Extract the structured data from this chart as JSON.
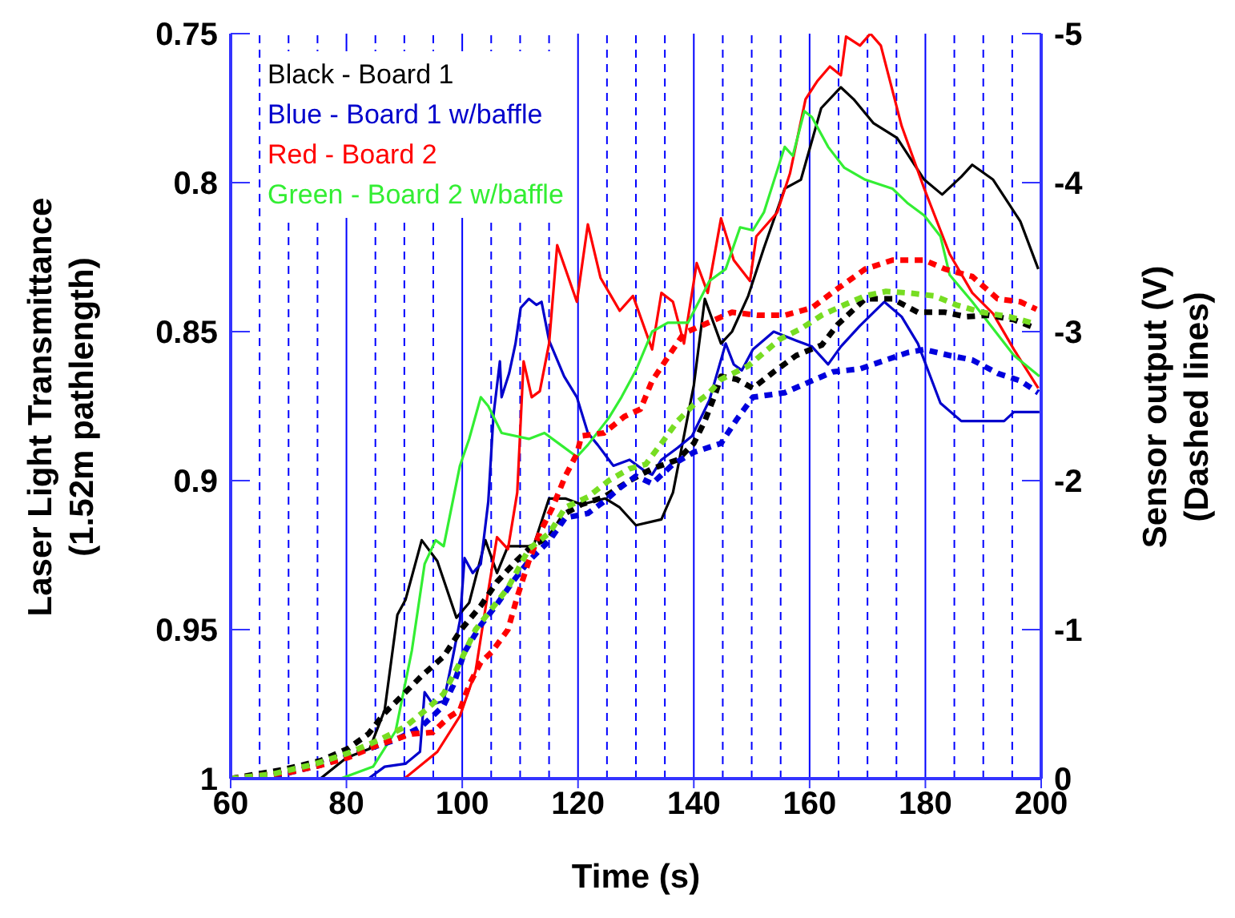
{
  "chart_data": {
    "type": "line",
    "xlabel": "Time (s)",
    "ylabel": "Laser Light Transmittance\n(1.52m pathlength)",
    "y2label": "Sensor output (V)\n(Dashed lines)",
    "xlim": [
      60,
      200
    ],
    "xticks": [
      60,
      80,
      100,
      120,
      140,
      160,
      180,
      200
    ],
    "ylim": [
      1,
      0.75
    ],
    "yticks": [
      0.75,
      0.8,
      0.85,
      0.9,
      0.95,
      1
    ],
    "y2lim": [
      0,
      -5
    ],
    "y2ticks": [
      -5,
      -4,
      -3,
      -2,
      -1,
      0
    ],
    "legend": "top left",
    "series": [
      {
        "name": "Black - Board 1",
        "color": "#000000",
        "line_style": "solid",
        "x": [
          60,
          75.5,
          80,
          84,
          86.6,
          88.8,
          90.2,
          93,
          95.7,
          99,
          101.2,
          104,
          106,
          107.9,
          112.3,
          115,
          117.8,
          120.6,
          124.7,
          127.2,
          130,
          134.4,
          136.4,
          139,
          140,
          141.9,
          144.7,
          146.6,
          149.4,
          152.1,
          155.7,
          158.5,
          162,
          165.4,
          167.6,
          171,
          175.1,
          179.8,
          182.9,
          186.2,
          188.1,
          191.7,
          196.4,
          199.5
        ],
        "values": [
          1,
          1,
          0.993,
          0.99,
          0.977,
          0.945,
          0.94,
          0.92,
          0.927,
          0.946,
          0.941,
          0.92,
          0.931,
          0.922,
          0.922,
          0.906,
          0.906,
          0.908,
          0.906,
          0.909,
          0.915,
          0.913,
          0.904,
          0.878,
          0.868,
          0.839,
          0.854,
          0.85,
          0.838,
          0.822,
          0.802,
          0.799,
          0.775,
          0.768,
          0.772,
          0.78,
          0.785,
          0.799,
          0.804,
          0.798,
          0.794,
          0.799,
          0.813,
          0.829
        ]
      },
      {
        "name": "Blue - Board 1 w/baffle",
        "color": "#0000cc",
        "line_style": "solid",
        "x": [
          60,
          83.8,
          86.6,
          90.2,
          92.7,
          93.5,
          94.9,
          96.8,
          98.2,
          99.6,
          100.4,
          101.8,
          103.2,
          104.5,
          105.4,
          106.5,
          106.8,
          108.1,
          109.2,
          110.1,
          111.5,
          112.8,
          113.7,
          115,
          117.6,
          119.8,
          121.7,
          123.4,
          126.1,
          128.9,
          131.7,
          132.8,
          134.4,
          137.2,
          139.7,
          142.7,
          145.5,
          146.9,
          148.3,
          150.2,
          153.8,
          157.7,
          160.4,
          163.2,
          165.4,
          168.7,
          172.9,
          175.9,
          178.7,
          182.6,
          186.2,
          189.8,
          193.6,
          195.3,
          199.7
        ],
        "values": [
          1,
          1,
          0.996,
          0.995,
          0.991,
          0.971,
          0.975,
          0.974,
          0.961,
          0.947,
          0.926,
          0.931,
          0.928,
          0.907,
          0.878,
          0.86,
          0.872,
          0.864,
          0.854,
          0.842,
          0.839,
          0.841,
          0.84,
          0.853,
          0.865,
          0.872,
          0.884,
          0.888,
          0.895,
          0.893,
          0.897,
          0.898,
          0.893,
          0.889,
          0.885,
          0.873,
          0.854,
          0.861,
          0.863,
          0.856,
          0.85,
          0.853,
          0.855,
          0.861,
          0.855,
          0.848,
          0.84,
          0.845,
          0.854,
          0.874,
          0.88,
          0.88,
          0.88,
          0.877,
          0.877
        ]
      },
      {
        "name": "Red - Board 2",
        "color": "#ff0000",
        "line_style": "solid",
        "x": [
          60,
          90,
          95.7,
          99.6,
          102.3,
          104,
          106,
          107.9,
          109.5,
          110.6,
          112,
          113.4,
          115,
          116.4,
          119.8,
          121.7,
          123.9,
          127.2,
          129.5,
          132.8,
          134.4,
          136.4,
          138.3,
          140.5,
          142.4,
          144.7,
          146.9,
          149.7,
          150.8,
          154.4,
          156.6,
          159.3,
          161.3,
          163.5,
          165.4,
          166.3,
          168.7,
          170.5,
          172.3,
          175.9,
          179.8,
          184.2,
          188.1,
          191.7,
          195.3,
          199.5
        ],
        "values": [
          1,
          1,
          0.991,
          0.979,
          0.964,
          0.943,
          0.919,
          0.923,
          0.904,
          0.86,
          0.872,
          0.87,
          0.854,
          0.821,
          0.84,
          0.814,
          0.832,
          0.843,
          0.838,
          0.856,
          0.837,
          0.84,
          0.854,
          0.827,
          0.837,
          0.812,
          0.826,
          0.833,
          0.818,
          0.81,
          0.797,
          0.772,
          0.766,
          0.761,
          0.764,
          0.751,
          0.754,
          0.75,
          0.754,
          0.781,
          0.802,
          0.824,
          0.837,
          0.844,
          0.856,
          0.869
        ]
      },
      {
        "name": "Green - Board 2 w/baffle",
        "color": "#33ee33",
        "line_style": "solid",
        "x": [
          60,
          79,
          84.6,
          88.5,
          91.3,
          93.5,
          95.4,
          96.8,
          99.6,
          101.2,
          103.2,
          104.5,
          106.8,
          111.5,
          114.2,
          117,
          119.8,
          121.7,
          125.3,
          127.5,
          130,
          132.8,
          135.5,
          139,
          142.7,
          145.5,
          148,
          150.2,
          152.1,
          155.7,
          157.1,
          159.1,
          160.4,
          163.2,
          166,
          169.6,
          174.3,
          177,
          179.8,
          182.6,
          184.2,
          188.1,
          191.7,
          195.3,
          199.7
        ],
        "values": [
          1,
          1,
          0.996,
          0.984,
          0.957,
          0.928,
          0.92,
          0.922,
          0.895,
          0.886,
          0.872,
          0.875,
          0.884,
          0.886,
          0.884,
          0.888,
          0.892,
          0.888,
          0.879,
          0.872,
          0.863,
          0.85,
          0.847,
          0.847,
          0.833,
          0.829,
          0.815,
          0.816,
          0.81,
          0.788,
          0.791,
          0.776,
          0.778,
          0.788,
          0.795,
          0.799,
          0.802,
          0.807,
          0.811,
          0.818,
          0.831,
          0.84,
          0.849,
          0.858,
          0.865
        ]
      },
      {
        "color": "#000000",
        "line_style": "dashed",
        "axis": "y2",
        "x": [
          60,
          69,
          75.5,
          80.2,
          83.8,
          86.6,
          90.2,
          93,
          96.8,
          99.8,
          103.2,
          106,
          109.3,
          112.3,
          115.1,
          117.8,
          120.6,
          124.5,
          128.9,
          132.8,
          137.2,
          140,
          141.9,
          143.8,
          144.7,
          147.4,
          150.2,
          153.8,
          157.7,
          162.1,
          164.9,
          169.6,
          174.3,
          178.7,
          183.4,
          187,
          190.9,
          195.3,
          199.2
        ],
        "values": [
          0,
          -0.06,
          -0.12,
          -0.2,
          -0.3,
          -0.44,
          -0.58,
          -0.69,
          -0.82,
          -1,
          -1.16,
          -1.32,
          -1.46,
          -1.57,
          -1.62,
          -1.78,
          -1.84,
          -1.89,
          -2,
          -2.08,
          -2.14,
          -2.25,
          -2.4,
          -2.59,
          -2.7,
          -2.68,
          -2.62,
          -2.73,
          -2.84,
          -2.91,
          -3.05,
          -3.22,
          -3.22,
          -3.13,
          -3.13,
          -3.1,
          -3.11,
          -3.08,
          -3.02
        ]
      },
      {
        "color": "#0000dd",
        "line_style": "dashed",
        "axis": "y2",
        "x": [
          60,
          69,
          75.5,
          80.2,
          83.8,
          88.5,
          93,
          96.8,
          98.5,
          100.4,
          103.2,
          106,
          108.7,
          111.5,
          115.1,
          117.8,
          121.7,
          124.5,
          127.2,
          130,
          132.8,
          136.4,
          140,
          144.7,
          147.4,
          150.2,
          155.7,
          160.4,
          164,
          168.7,
          173.2,
          177,
          179.8,
          184.2,
          188.1,
          192.5,
          196.4,
          199.5
        ],
        "values": [
          0,
          -0.03,
          -0.09,
          -0.15,
          -0.2,
          -0.26,
          -0.35,
          -0.49,
          -0.63,
          -0.85,
          -1.03,
          -1.17,
          -1.32,
          -1.46,
          -1.6,
          -1.75,
          -1.78,
          -1.86,
          -1.95,
          -2.03,
          -1.98,
          -2.11,
          -2.19,
          -2.25,
          -2.41,
          -2.56,
          -2.59,
          -2.67,
          -2.73,
          -2.75,
          -2.81,
          -2.86,
          -2.88,
          -2.84,
          -2.81,
          -2.72,
          -2.67,
          -2.59
        ]
      },
      {
        "color": "#ff0000",
        "line_style": "dashed",
        "axis": "y2",
        "x": [
          60,
          70,
          75.5,
          80.2,
          85.7,
          91.3,
          94.9,
          97.6,
          99.6,
          101.2,
          103.2,
          105.1,
          107.9,
          109.5,
          111.5,
          113.4,
          115.6,
          117.8,
          119.8,
          120.6,
          124.5,
          128,
          130.8,
          132.8,
          138.3,
          141.9,
          146.6,
          151,
          155.7,
          160.4,
          164.9,
          169.6,
          174.3,
          179.8,
          183.4,
          188.1,
          192.5,
          196.4,
          199.2
        ],
        "values": [
          0,
          -0.04,
          -0.09,
          -0.14,
          -0.23,
          -0.3,
          -0.31,
          -0.41,
          -0.46,
          -0.63,
          -0.78,
          -0.85,
          -1,
          -1.22,
          -1.46,
          -1.65,
          -1.82,
          -2.03,
          -2.18,
          -2.3,
          -2.32,
          -2.43,
          -2.48,
          -2.67,
          -2.99,
          -3.05,
          -3.13,
          -3.11,
          -3.11,
          -3.16,
          -3.29,
          -3.42,
          -3.48,
          -3.48,
          -3.42,
          -3.37,
          -3.22,
          -3.2,
          -3.15
        ]
      },
      {
        "color": "#77dd22",
        "line_style": "dashed",
        "axis": "y2",
        "x": [
          60,
          67.2,
          74.7,
          80.2,
          85.7,
          90.2,
          94,
          96.8,
          99.6,
          102.3,
          105.1,
          107.9,
          111.5,
          115.1,
          117.8,
          121.7,
          125.3,
          128.9,
          131.7,
          134.4,
          137.2,
          140,
          142.7,
          144.7,
          149.4,
          154.9,
          158.5,
          162.1,
          166,
          169.6,
          173.2,
          177,
          181.5,
          185.3,
          189.8,
          194.5,
          199.2
        ],
        "values": [
          0,
          -0.03,
          -0.1,
          -0.17,
          -0.26,
          -0.35,
          -0.47,
          -0.57,
          -0.78,
          -1,
          -1.14,
          -1.28,
          -1.54,
          -1.65,
          -1.82,
          -1.89,
          -2,
          -2.08,
          -2.11,
          -2.25,
          -2.4,
          -2.51,
          -2.59,
          -2.68,
          -2.77,
          -2.95,
          -3.02,
          -3.11,
          -3.18,
          -3.24,
          -3.27,
          -3.26,
          -3.24,
          -3.18,
          -3.13,
          -3.1,
          -3.05
        ]
      }
    ],
    "ref_lines": [
      {
        "axis": "x",
        "value": 65,
        "line_style": "dashed",
        "color": "#0000ff"
      },
      {
        "axis": "x",
        "value": 70,
        "line_style": "dashed",
        "color": "#0000ff"
      },
      {
        "axis": "x",
        "value": 75,
        "line_style": "dashed",
        "color": "#0000ff"
      },
      {
        "axis": "x",
        "value": 80,
        "line_style": "solid",
        "color": "#0000ff"
      },
      {
        "axis": "x",
        "value": 85,
        "line_style": "dashed",
        "color": "#0000ff"
      },
      {
        "axis": "x",
        "value": 90,
        "line_style": "dashed",
        "color": "#0000ff"
      },
      {
        "axis": "x",
        "value": 95,
        "line_style": "dashed",
        "color": "#0000ff"
      },
      {
        "axis": "x",
        "value": 100,
        "line_style": "solid",
        "color": "#0000ff"
      },
      {
        "axis": "x",
        "value": 105,
        "line_style": "dashed",
        "color": "#0000ff"
      },
      {
        "axis": "x",
        "value": 110,
        "line_style": "dashed",
        "color": "#0000ff"
      },
      {
        "axis": "x",
        "value": 115,
        "line_style": "dashed",
        "color": "#0000ff"
      },
      {
        "axis": "x",
        "value": 120,
        "line_style": "solid",
        "color": "#0000ff"
      },
      {
        "axis": "x",
        "value": 125,
        "line_style": "dashed",
        "color": "#0000ff"
      },
      {
        "axis": "x",
        "value": 130,
        "line_style": "dashed",
        "color": "#0000ff"
      },
      {
        "axis": "x",
        "value": 135,
        "line_style": "dashed",
        "color": "#0000ff"
      },
      {
        "axis": "x",
        "value": 140,
        "line_style": "solid",
        "color": "#0000ff"
      },
      {
        "axis": "x",
        "value": 145,
        "line_style": "dashed",
        "color": "#0000ff"
      },
      {
        "axis": "x",
        "value": 150,
        "line_style": "dashed",
        "color": "#0000ff"
      },
      {
        "axis": "x",
        "value": 155,
        "line_style": "dashed",
        "color": "#0000ff"
      },
      {
        "axis": "x",
        "value": 160,
        "line_style": "solid",
        "color": "#0000ff"
      },
      {
        "axis": "x",
        "value": 165,
        "line_style": "dashed",
        "color": "#0000ff"
      },
      {
        "axis": "x",
        "value": 170,
        "line_style": "dashed",
        "color": "#0000ff"
      },
      {
        "axis": "x",
        "value": 175,
        "line_style": "dashed",
        "color": "#0000ff"
      },
      {
        "axis": "x",
        "value": 180,
        "line_style": "solid",
        "color": "#0000ff"
      },
      {
        "axis": "x",
        "value": 185,
        "line_style": "dashed",
        "color": "#0000ff"
      },
      {
        "axis": "x",
        "value": 190,
        "line_style": "dashed",
        "color": "#0000ff"
      },
      {
        "axis": "x",
        "value": 195,
        "line_style": "dashed",
        "color": "#0000ff"
      }
    ]
  }
}
